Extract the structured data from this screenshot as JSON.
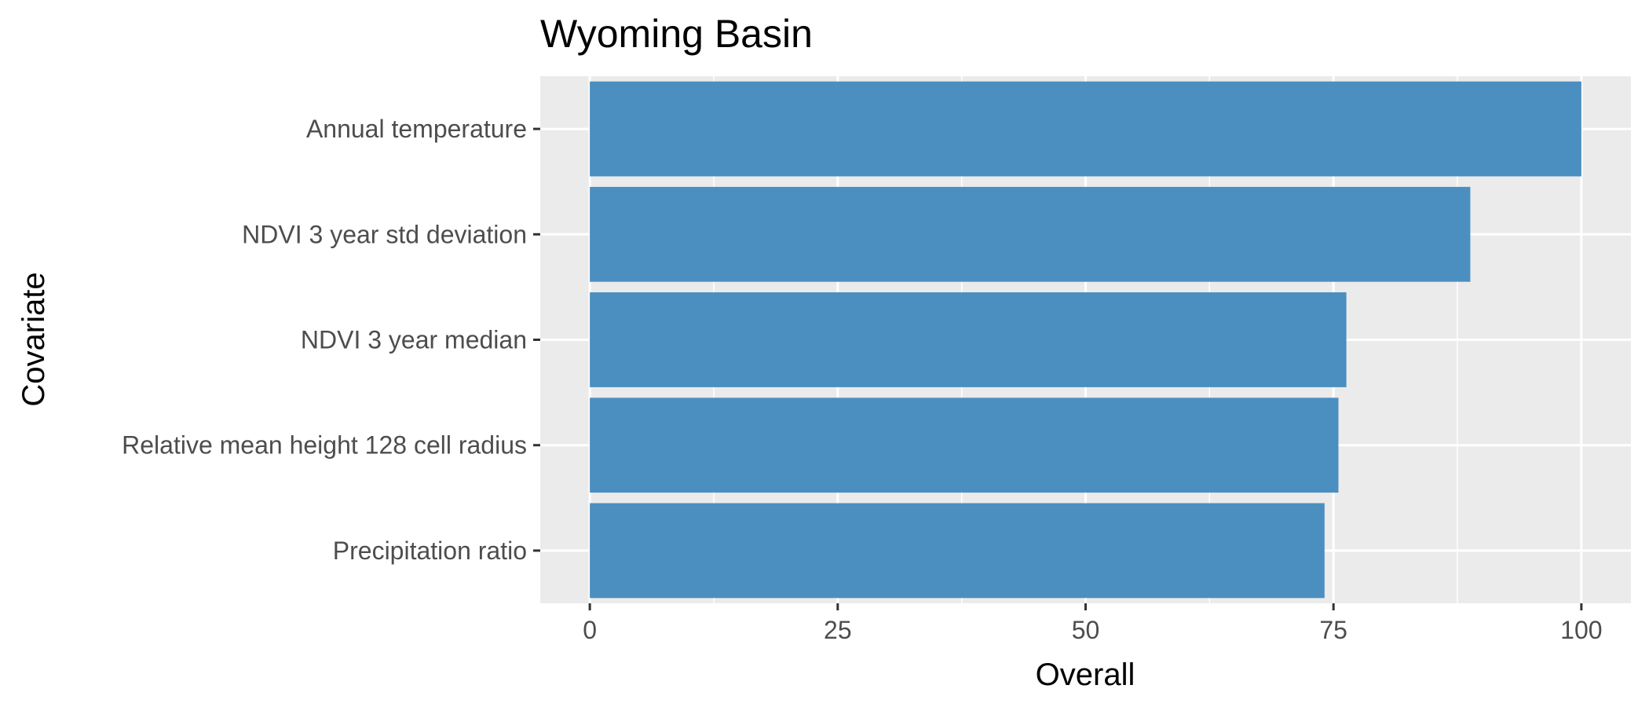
{
  "chart_data": {
    "type": "bar",
    "orientation": "horizontal",
    "title": "Wyoming Basin",
    "xlabel": "Overall",
    "ylabel": "Covariate",
    "categories": [
      "Annual temperature",
      "NDVI 3 year std deviation",
      "NDVI 3 year median",
      "Relative mean height 128 cell radius",
      "Precipitation ratio"
    ],
    "values": [
      100,
      88.8,
      76.3,
      75.5,
      74.1
    ],
    "xlim": [
      -5,
      105
    ],
    "xticks": [
      0,
      25,
      50,
      75,
      100
    ],
    "xtick_labels": [
      "0",
      "25",
      "50",
      "75",
      "100"
    ],
    "grid": true,
    "legend": "none",
    "colors": {
      "bar": "#4a8fc0",
      "panel_background": "#ebebeb",
      "gridline": "#ffffff"
    }
  }
}
